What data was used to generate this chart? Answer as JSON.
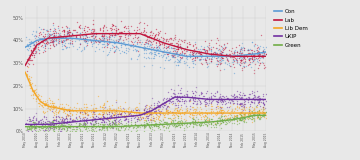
{
  "title": "",
  "ylim": [
    0,
    55
  ],
  "yticks": [
    0,
    10,
    20,
    30,
    40,
    50
  ],
  "ytick_labels": [
    "0%",
    "10%",
    "20%",
    "30%",
    "40%",
    "50%"
  ],
  "legend_entries": [
    "Con",
    "Lab",
    "Lib Dem",
    "UKIP",
    "Green"
  ],
  "legend_colors": [
    "#5b9bd5",
    "#c0143c",
    "#f5a623",
    "#7030a0",
    "#70ad47"
  ],
  "bg_color": "#e8e8e8",
  "con_color": "#5b9bd5",
  "lab_color": "#c0143c",
  "ld_color": "#f5a623",
  "ukip_color": "#7030a0",
  "green_color": "#70ad47",
  "scatter_alpha": 0.55,
  "scatter_size": 1.0,
  "line_width": 1.0,
  "n_polls": 800,
  "t_total": 63,
  "con_knots_x": [
    0,
    3,
    6,
    12,
    18,
    24,
    30,
    36,
    42,
    48,
    54,
    60,
    63
  ],
  "con_knots_y": [
    37,
    40,
    41,
    41,
    40,
    39,
    37,
    35,
    33,
    33,
    33,
    34,
    35
  ],
  "lab_knots_x": [
    0,
    3,
    6,
    12,
    18,
    24,
    30,
    36,
    42,
    48,
    54,
    60,
    63
  ],
  "lab_knots_y": [
    29,
    38,
    41,
    42,
    43,
    43,
    43,
    39,
    36,
    34,
    33,
    33,
    33
  ],
  "ld_knots_x": [
    0,
    2,
    4,
    6,
    12,
    18,
    24,
    30,
    36,
    42,
    48,
    54,
    60,
    63
  ],
  "ld_knots_y": [
    26,
    18,
    13,
    11,
    9,
    9,
    9,
    8,
    8,
    8,
    8,
    8,
    8,
    8
  ],
  "ukip_knots_x": [
    0,
    6,
    12,
    18,
    24,
    30,
    33,
    36,
    39,
    42,
    48,
    54,
    60,
    63
  ],
  "ukip_knots_y": [
    3,
    3,
    4,
    5,
    6,
    7,
    9,
    12,
    15,
    15,
    14,
    14,
    14,
    14
  ],
  "green_knots_x": [
    0,
    12,
    24,
    36,
    48,
    54,
    57,
    60,
    63
  ],
  "green_knots_y": [
    2,
    2,
    2,
    3,
    4,
    5,
    6,
    7,
    7
  ],
  "con_noise": 2.5,
  "lab_noise": 2.5,
  "ld_noise": 1.8,
  "ukip_noise": 2.0,
  "green_noise": 1.2,
  "x_tick_labels": [
    "May 2010",
    "Aug 2010",
    "Nov 2010",
    "Feb 2011",
    "May 2011",
    "Aug 2011",
    "Nov 2011",
    "Feb 2012",
    "May 2012",
    "Aug 2012",
    "Nov 2012",
    "Feb 2013",
    "May 2013",
    "Aug 2013",
    "Nov 2013",
    "Feb 2014",
    "May 2014",
    "Aug 2014",
    "Nov 2014",
    "Feb 2015",
    "May 2015",
    "Aug 2015"
  ],
  "x_tick_pos": [
    0,
    3,
    6,
    9,
    12,
    15,
    18,
    21,
    24,
    27,
    30,
    33,
    36,
    39,
    42,
    45,
    48,
    51,
    54,
    57,
    60,
    63
  ]
}
